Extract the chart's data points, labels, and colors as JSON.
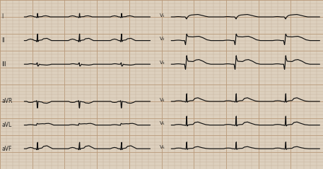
{
  "bg_color": "#ddd0be",
  "grid_minor_color": "#c4b09a",
  "grid_major_color": "#b89878",
  "line_color": "#111111",
  "label_color": "#222222",
  "labels_left": [
    "I",
    "II",
    "III",
    "aVR",
    "aVL",
    "aVF"
  ],
  "labels_right": [
    "V₁",
    "V₂",
    "V₃",
    "V₄",
    "V₅",
    "V₆"
  ],
  "fig_width": 4.57,
  "fig_height": 2.4,
  "dpi": 100,
  "n_beats": 3
}
